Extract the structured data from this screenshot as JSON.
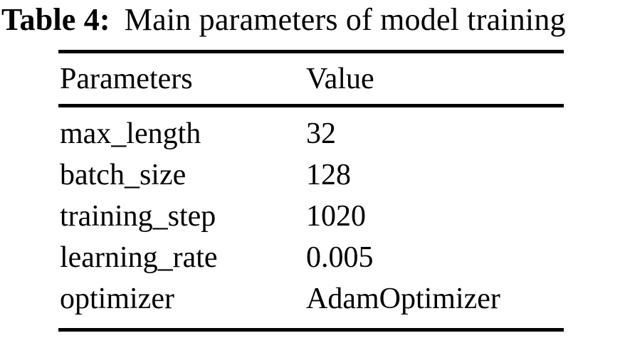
{
  "title": {
    "label": "Table 4:",
    "text": "Main parameters of model training"
  },
  "table": {
    "headers": [
      "Parameters",
      "Value"
    ],
    "rows": [
      {
        "parameter": "max_length",
        "value": "32"
      },
      {
        "parameter": "batch_size",
        "value": "128"
      },
      {
        "parameter": "training_step",
        "value": "1020"
      },
      {
        "parameter": "learning_rate",
        "value": "0.005"
      },
      {
        "parameter": "optimizer",
        "value": "AdamOptimizer"
      }
    ]
  },
  "colors": {
    "text": "#000000",
    "background": "#ffffff",
    "rule": "#000000"
  }
}
